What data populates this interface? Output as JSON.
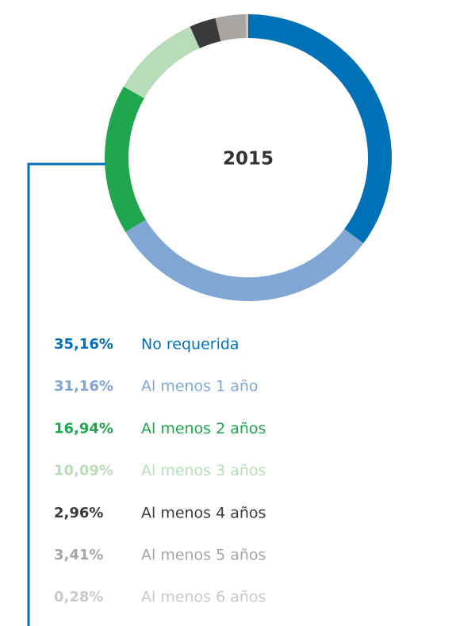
{
  "chart_data": {
    "type": "pie",
    "donut": true,
    "title": "2015",
    "categories": [
      "No requerida",
      "Al menos 1 año",
      "Al menos 2 años",
      "Al menos 3 años",
      "Al menos 4 años",
      "Al menos 5 años",
      "Al menos 6 años"
    ],
    "values": [
      35.16,
      31.16,
      16.94,
      10.09,
      2.96,
      3.41,
      0.28
    ],
    "value_labels": [
      "35,16%",
      "31,16%",
      "16,94%",
      "10,09%",
      "2,96%",
      "3,41%",
      "0,28%"
    ],
    "colors": [
      "#0071b7",
      "#80a6d4",
      "#21a650",
      "#b9dcb8",
      "#3a3a3a",
      "#a8a5a3",
      "#c9c9c9"
    ],
    "legend": "bottom"
  }
}
